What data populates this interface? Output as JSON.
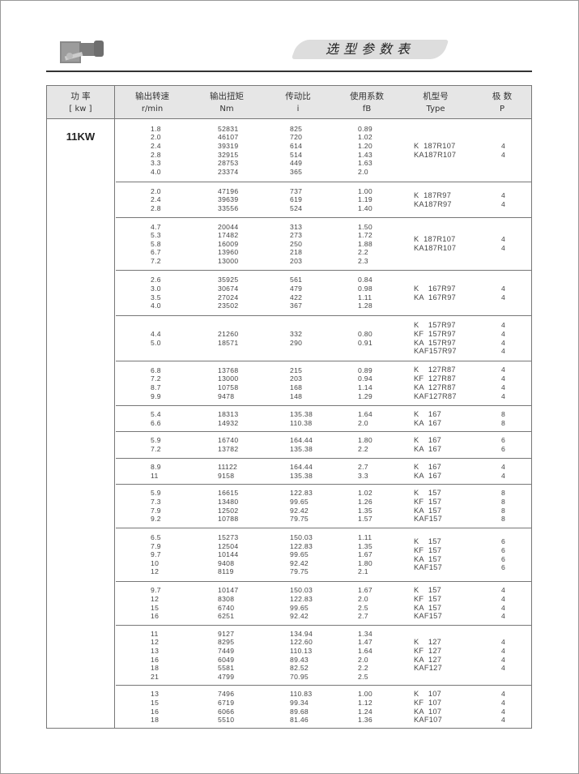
{
  "header": {
    "title": "选型参数表"
  },
  "table": {
    "columns": [
      {
        "cn": "功 率",
        "unit": "[ kw ]"
      },
      {
        "cn": "输出转速",
        "unit": "r/min"
      },
      {
        "cn": "输出扭矩",
        "unit": "Nm"
      },
      {
        "cn": "传动比",
        "unit": "i"
      },
      {
        "cn": "使用系数",
        "unit": "fB"
      },
      {
        "cn": "机型号",
        "unit": "Type"
      },
      {
        "cn": "极 数",
        "unit": "P"
      }
    ],
    "power": "11KW",
    "groups": [
      {
        "rows": [
          [
            "1.8",
            "52831",
            "825",
            "0.89"
          ],
          [
            "2.0",
            "46107",
            "720",
            "1.02"
          ],
          [
            "2.4",
            "39319",
            "614",
            "1.20"
          ],
          [
            "2.8",
            "32915",
            "514",
            "1.43"
          ],
          [
            "3.3",
            "28753",
            "449",
            "1.63"
          ],
          [
            "4.0",
            "23374",
            "365",
            "2.0"
          ]
        ],
        "types": [
          [
            "K  187R107",
            "4"
          ],
          [
            "KA187R107",
            "4"
          ]
        ]
      },
      {
        "rows": [
          [
            "2.0",
            "47196",
            "737",
            "1.00"
          ],
          [
            "2.4",
            "39639",
            "619",
            "1.19"
          ],
          [
            "2.8",
            "33556",
            "524",
            "1.40"
          ]
        ],
        "types": [
          [
            "K  187R97",
            "4"
          ],
          [
            "KA187R97",
            "4"
          ]
        ]
      },
      {
        "rows": [
          [
            "4.7",
            "20044",
            "313",
            "1.50"
          ],
          [
            "5.3",
            "17482",
            "273",
            "1.72"
          ],
          [
            "5.8",
            "16009",
            "250",
            "1.88"
          ],
          [
            "6.7",
            "13960",
            "218",
            "2.2"
          ],
          [
            "7.2",
            "13000",
            "203",
            "2.3"
          ]
        ],
        "types": [
          [
            "K  187R107",
            "4"
          ],
          [
            "KA187R107",
            "4"
          ]
        ]
      },
      {
        "rows": [
          [
            "2.6",
            "35925",
            "561",
            "0.84"
          ],
          [
            "3.0",
            "30674",
            "479",
            "0.98"
          ],
          [
            "3.5",
            "27024",
            "422",
            "1.11"
          ],
          [
            "4.0",
            "23502",
            "367",
            "1.28"
          ]
        ],
        "types": [
          [
            "K    167R97",
            "4"
          ],
          [
            "KA  167R97",
            "4"
          ]
        ]
      },
      {
        "rows": [
          [
            "4.4",
            "21260",
            "332",
            "0.80"
          ],
          [
            "5.0",
            "18571",
            "290",
            "0.91"
          ]
        ],
        "types": [
          [
            "K    157R97",
            "4"
          ],
          [
            "KF  157R97",
            "4"
          ],
          [
            "KA  157R97",
            "4"
          ],
          [
            "KAF157R97",
            "4"
          ]
        ]
      },
      {
        "rows": [
          [
            "6.8",
            "13768",
            "215",
            "0.89"
          ],
          [
            "7.2",
            "13000",
            "203",
            "0.94"
          ],
          [
            "8.7",
            "10758",
            "168",
            "1.14"
          ],
          [
            "9.9",
            "9478",
            "148",
            "1.29"
          ]
        ],
        "types": [
          [
            "K    127R87",
            "4"
          ],
          [
            "KF  127R87",
            "4"
          ],
          [
            "KA  127R87",
            "4"
          ],
          [
            "KAF127R87",
            "4"
          ]
        ]
      },
      {
        "rows": [
          [
            "5.4",
            "18313",
            "135.38",
            "1.64"
          ],
          [
            "6.6",
            "14932",
            "110.38",
            "2.0"
          ]
        ],
        "types": [
          [
            "K    167",
            "8"
          ],
          [
            "KA  167",
            "8"
          ]
        ]
      },
      {
        "rows": [
          [
            "5.9",
            "16740",
            "164.44",
            "1.80"
          ],
          [
            "7.2",
            "13782",
            "135.38",
            "2.2"
          ]
        ],
        "types": [
          [
            "K    167",
            "6"
          ],
          [
            "KA  167",
            "6"
          ]
        ]
      },
      {
        "rows": [
          [
            "8.9",
            "11122",
            "164.44",
            "2.7"
          ],
          [
            "11",
            "9158",
            "135.38",
            "3.3"
          ]
        ],
        "types": [
          [
            "K    167",
            "4"
          ],
          [
            "KA  167",
            "4"
          ]
        ]
      },
      {
        "rows": [
          [
            "5.9",
            "16615",
            "122.83",
            "1.02"
          ],
          [
            "7.3",
            "13480",
            "99.65",
            "1.26"
          ],
          [
            "7.9",
            "12502",
            "92.42",
            "1.35"
          ],
          [
            "9.2",
            "10788",
            "79.75",
            "1.57"
          ]
        ],
        "types": [
          [
            "K    157",
            "8"
          ],
          [
            "KF  157",
            "8"
          ],
          [
            "KA  157",
            "8"
          ],
          [
            "KAF157",
            "8"
          ]
        ]
      },
      {
        "rows": [
          [
            "6.5",
            "15273",
            "150.03",
            "1.11"
          ],
          [
            "7.9",
            "12504",
            "122.83",
            "1.35"
          ],
          [
            "9.7",
            "10144",
            "99.65",
            "1.67"
          ],
          [
            "10",
            "9408",
            "92.42",
            "1.80"
          ],
          [
            "12",
            "8119",
            "79.75",
            "2.1"
          ]
        ],
        "types": [
          [
            "K    157",
            "6"
          ],
          [
            "KF  157",
            "6"
          ],
          [
            "KA  157",
            "6"
          ],
          [
            "KAF157",
            "6"
          ]
        ]
      },
      {
        "rows": [
          [
            "9.7",
            "10147",
            "150.03",
            "1.67"
          ],
          [
            "12",
            "8308",
            "122.83",
            "2.0"
          ],
          [
            "15",
            "6740",
            "99.65",
            "2.5"
          ],
          [
            "16",
            "6251",
            "92.42",
            "2.7"
          ]
        ],
        "types": [
          [
            "K    157",
            "4"
          ],
          [
            "KF  157",
            "4"
          ],
          [
            "KA  157",
            "4"
          ],
          [
            "KAF157",
            "4"
          ]
        ]
      },
      {
        "rows": [
          [
            "11",
            "9127",
            "134.94",
            "1.34"
          ],
          [
            "12",
            "8295",
            "122.60",
            "1.47"
          ],
          [
            "13",
            "7449",
            "110.13",
            "1.64"
          ],
          [
            "16",
            "6049",
            "89.43",
            "2.0"
          ],
          [
            "18",
            "5581",
            "82.52",
            "2.2"
          ],
          [
            "21",
            "4799",
            "70.95",
            "2.5"
          ]
        ],
        "types": [
          [
            "K    127",
            "4"
          ],
          [
            "KF  127",
            "4"
          ],
          [
            "KA  127",
            "4"
          ],
          [
            "KAF127",
            "4"
          ]
        ]
      },
      {
        "rows": [
          [
            "13",
            "7496",
            "110.83",
            "1.00"
          ],
          [
            "15",
            "6719",
            "99.34",
            "1.12"
          ],
          [
            "16",
            "6066",
            "89.68",
            "1.24"
          ],
          [
            "18",
            "5510",
            "81.46",
            "1.36"
          ]
        ],
        "types": [
          [
            "K    107",
            "4"
          ],
          [
            "KF  107",
            "4"
          ],
          [
            "KA  107",
            "4"
          ],
          [
            "KAF107",
            "4"
          ]
        ]
      }
    ]
  }
}
